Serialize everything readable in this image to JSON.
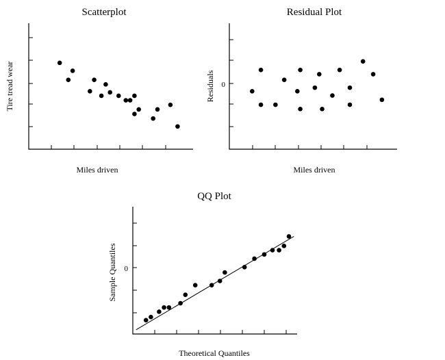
{
  "chart_data": [
    {
      "id": "scatter",
      "type": "scatter",
      "title": "Scatterplot",
      "xlabel": "Miles driven",
      "ylabel": "Tire tread wear",
      "xlim": [
        0,
        100
      ],
      "ylim": [
        0,
        100
      ],
      "y_tick_labels": [],
      "points": [
        {
          "x": 12,
          "y": 70
        },
        {
          "x": 18,
          "y": 55
        },
        {
          "x": 21,
          "y": 63
        },
        {
          "x": 33,
          "y": 45
        },
        {
          "x": 36,
          "y": 55
        },
        {
          "x": 41,
          "y": 41
        },
        {
          "x": 44,
          "y": 51
        },
        {
          "x": 47,
          "y": 44
        },
        {
          "x": 53,
          "y": 41
        },
        {
          "x": 58,
          "y": 37
        },
        {
          "x": 61,
          "y": 37
        },
        {
          "x": 64,
          "y": 41
        },
        {
          "x": 64,
          "y": 25
        },
        {
          "x": 67,
          "y": 29
        },
        {
          "x": 77,
          "y": 21
        },
        {
          "x": 80,
          "y": 29
        },
        {
          "x": 89,
          "y": 33
        },
        {
          "x": 94,
          "y": 14
        }
      ]
    },
    {
      "id": "residual",
      "type": "scatter",
      "title": "Residual Plot",
      "xlabel": "Miles driven",
      "ylabel": "Residuals",
      "xlim": [
        0,
        100
      ],
      "ylim": [
        -4,
        4
      ],
      "y_tick_labels": [
        {
          "value": 0,
          "label": "0"
        }
      ],
      "points": [
        {
          "x": 10,
          "y": -0.4
        },
        {
          "x": 16,
          "y": 1.1
        },
        {
          "x": 16,
          "y": -1.35
        },
        {
          "x": 26,
          "y": -1.35
        },
        {
          "x": 32,
          "y": 0.4
        },
        {
          "x": 41,
          "y": -0.4
        },
        {
          "x": 43,
          "y": 1.1
        },
        {
          "x": 43,
          "y": -1.65
        },
        {
          "x": 53,
          "y": -0.15
        },
        {
          "x": 56,
          "y": 0.8
        },
        {
          "x": 58,
          "y": -1.65
        },
        {
          "x": 65,
          "y": -0.7
        },
        {
          "x": 70,
          "y": 1.1
        },
        {
          "x": 77,
          "y": -0.15
        },
        {
          "x": 77,
          "y": -1.35
        },
        {
          "x": 86,
          "y": 1.7
        },
        {
          "x": 93,
          "y": 0.8
        },
        {
          "x": 99,
          "y": -1.0
        }
      ]
    },
    {
      "id": "qq",
      "type": "scatter",
      "title": "QQ Plot",
      "xlabel": "Theoretical Quantiles",
      "ylabel": "Sample Quantiles",
      "xlim": [
        -2.5,
        2.5
      ],
      "ylim": [
        -3,
        3
      ],
      "y_tick_labels": [
        {
          "value": 0,
          "label": "0"
        }
      ],
      "reference_line": {
        "from": [
          -2.4,
          -2.8
        ],
        "to": [
          2.4,
          1.6
        ]
      },
      "points": [
        {
          "x": -2.1,
          "y": -2.35
        },
        {
          "x": -1.95,
          "y": -2.2
        },
        {
          "x": -1.7,
          "y": -1.95
        },
        {
          "x": -1.55,
          "y": -1.75
        },
        {
          "x": -1.4,
          "y": -1.75
        },
        {
          "x": -1.05,
          "y": -1.55
        },
        {
          "x": -0.9,
          "y": -1.15
        },
        {
          "x": -0.6,
          "y": -0.7
        },
        {
          "x": -0.1,
          "y": -0.7
        },
        {
          "x": 0.15,
          "y": -0.5
        },
        {
          "x": 0.3,
          "y": -0.1
        },
        {
          "x": 0.9,
          "y": 0.15
        },
        {
          "x": 1.2,
          "y": 0.55
        },
        {
          "x": 1.5,
          "y": 0.75
        },
        {
          "x": 1.75,
          "y": 0.95
        },
        {
          "x": 1.95,
          "y": 0.95
        },
        {
          "x": 2.1,
          "y": 1.15
        },
        {
          "x": 2.25,
          "y": 1.6
        }
      ]
    }
  ]
}
